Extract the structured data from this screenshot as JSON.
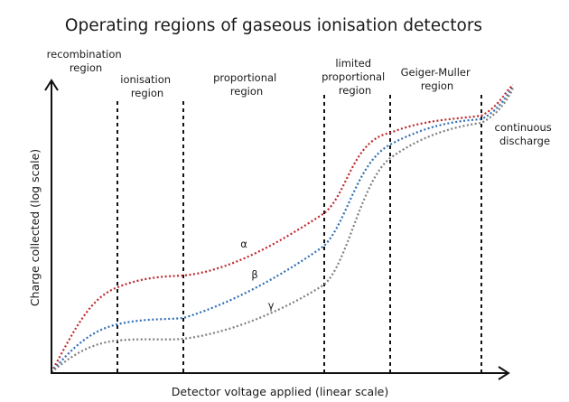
{
  "title": "Operating regions of gaseous ionisation detectors",
  "axes": {
    "x_label": "Detector voltage applied  (linear scale)",
    "y_label": "Charge collected  (log scale)"
  },
  "regions": [
    {
      "id": "recombination",
      "lines": [
        "recombination",
        "region"
      ]
    },
    {
      "id": "ionisation",
      "lines": [
        "ionisation",
        "region"
      ]
    },
    {
      "id": "proportional",
      "lines": [
        "proportional",
        "region"
      ]
    },
    {
      "id": "limited-proportional",
      "lines": [
        "limited",
        "proportional",
        "region"
      ]
    },
    {
      "id": "geiger-muller",
      "lines": [
        "Geiger-Muller",
        "region"
      ]
    },
    {
      "id": "continuous-discharge",
      "lines": [
        "continuous",
        "discharge"
      ]
    }
  ],
  "curves": [
    {
      "id": "alpha",
      "label": "α",
      "color": "#c0262c"
    },
    {
      "id": "beta",
      "label": "β",
      "color": "#2f6db3"
    },
    {
      "id": "gamma",
      "label": "γ",
      "color": "#7f7f7f"
    }
  ],
  "colors": {
    "axis": "#111111",
    "boundary": "#111111"
  }
}
